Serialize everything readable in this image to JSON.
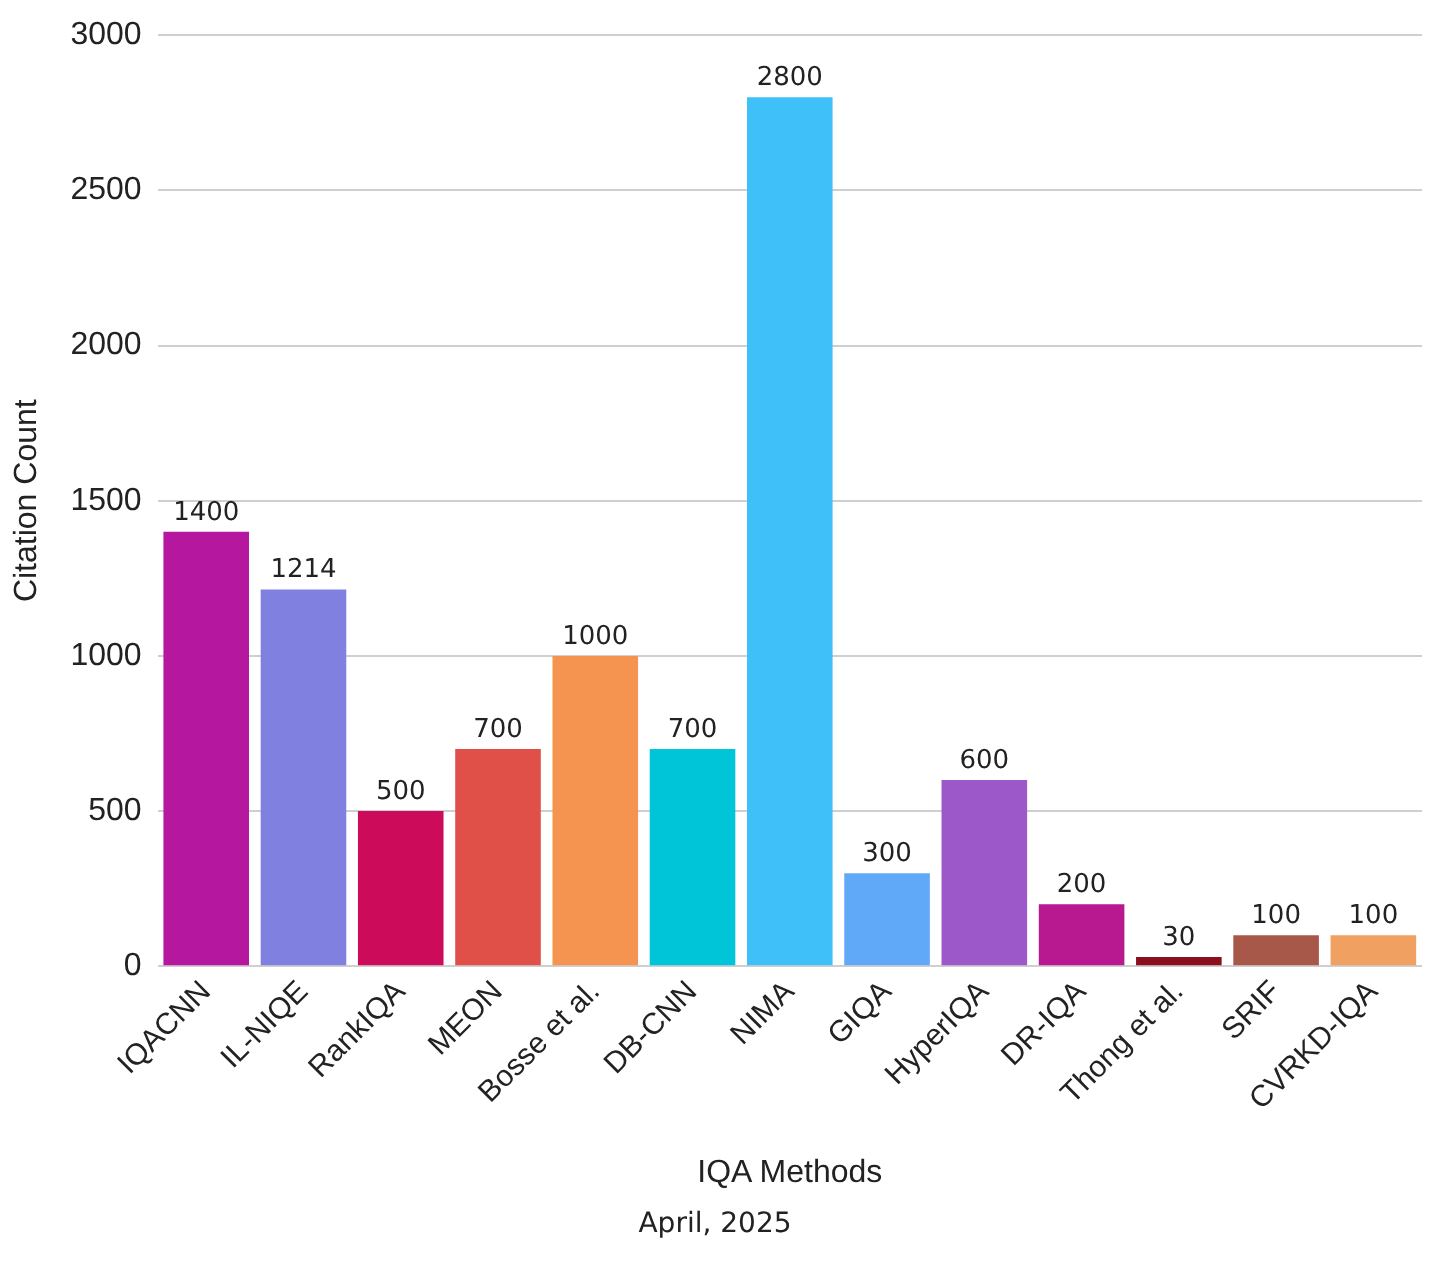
{
  "chart_data": {
    "type": "bar",
    "xlabel": "IQA Methods",
    "ylabel": "Citation Count",
    "categories": [
      "IQACNN",
      "IL-NIQE",
      "RankIQA",
      "MEON",
      "Bosse et al.",
      "DB-CNN",
      "NIMA",
      "GIQA",
      "HyperIQA",
      "DR-IQA",
      "Thong et al.",
      "SRIF",
      "CVRKD-IQA"
    ],
    "values": [
      1400,
      1214,
      500,
      700,
      1000,
      700,
      2800,
      300,
      600,
      200,
      30,
      100,
      100
    ],
    "colors": [
      "#b5179e",
      "#8080e0",
      "#cc0c5a",
      "#e05048",
      "#f59450",
      "#00c4d8",
      "#40c0f8",
      "#60a8f8",
      "#9c58c8",
      "#b81890",
      "#8a1020",
      "#a85848",
      "#f0a060"
    ],
    "ylim": [
      0,
      3000
    ],
    "yticks": [
      0,
      500,
      1000,
      1500,
      2000,
      2500,
      3000
    ],
    "grid": "y",
    "data_labels": true,
    "legend": false,
    "annotations": [
      "April, 2025"
    ]
  }
}
